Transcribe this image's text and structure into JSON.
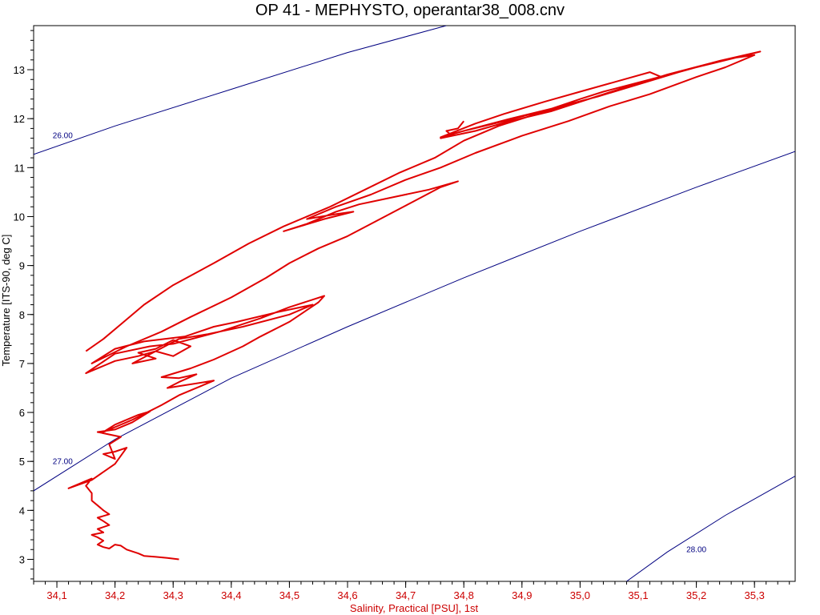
{
  "chart_data": {
    "type": "line",
    "title": "OP 41 - MEPHYSTO, operantar38_008.cnv",
    "xlabel": "Salinity, Practical [PSU], 1st",
    "ylabel": "Temperature [ITS-90, deg C]",
    "xlim": [
      34.06,
      35.37
    ],
    "ylim": [
      2.55,
      13.9
    ],
    "x_ticks": [
      "34,1",
      "34,2",
      "34,3",
      "34,4",
      "34,5",
      "34,6",
      "34,7",
      "34,8",
      "34,9",
      "35,0",
      "35,1",
      "35,2",
      "35,3"
    ],
    "y_ticks": [
      "3",
      "4",
      "5",
      "6",
      "7",
      "8",
      "9",
      "10",
      "11",
      "12",
      "13"
    ],
    "grid": false,
    "colors": {
      "profile": "#e00000",
      "isopycnal": "#000080",
      "x_axis_text": "#cc0000",
      "y_axis_text": "#000000"
    },
    "isopycnals": [
      {
        "label": "26.00",
        "points": [
          [
            34.06,
            11.27
          ],
          [
            34.2,
            11.85
          ],
          [
            34.4,
            12.6
          ],
          [
            34.6,
            13.35
          ],
          [
            34.77,
            13.9
          ]
        ]
      },
      {
        "label": "27.00",
        "points": [
          [
            34.06,
            4.4
          ],
          [
            34.2,
            5.45
          ],
          [
            34.4,
            6.7
          ],
          [
            34.6,
            7.75
          ],
          [
            34.8,
            8.75
          ],
          [
            35.0,
            9.7
          ],
          [
            35.2,
            10.6
          ],
          [
            35.37,
            11.33
          ]
        ]
      },
      {
        "label": "28.00",
        "points": [
          [
            35.08,
            2.55
          ],
          [
            35.15,
            3.15
          ],
          [
            35.25,
            3.9
          ],
          [
            35.37,
            4.7
          ]
        ]
      }
    ],
    "series": [
      {
        "points": [
          [
            34.31,
            3.0
          ],
          [
            34.29,
            3.03
          ],
          [
            34.27,
            3.05
          ],
          [
            34.25,
            3.07
          ],
          [
            34.24,
            3.12
          ],
          [
            34.22,
            3.2
          ],
          [
            34.21,
            3.28
          ],
          [
            34.2,
            3.3
          ],
          [
            34.19,
            3.22
          ],
          [
            34.18,
            3.25
          ],
          [
            34.17,
            3.3
          ],
          [
            34.18,
            3.38
          ],
          [
            34.17,
            3.45
          ],
          [
            34.16,
            3.5
          ],
          [
            34.18,
            3.55
          ],
          [
            34.17,
            3.62
          ],
          [
            34.19,
            3.7
          ],
          [
            34.18,
            3.78
          ],
          [
            34.17,
            3.85
          ],
          [
            34.19,
            3.92
          ],
          [
            34.18,
            4.0
          ],
          [
            34.17,
            4.1
          ],
          [
            34.16,
            4.2
          ],
          [
            34.16,
            4.35
          ],
          [
            34.15,
            4.5
          ],
          [
            34.16,
            4.65
          ],
          [
            34.12,
            4.45
          ],
          [
            34.16,
            4.62
          ],
          [
            34.2,
            4.95
          ],
          [
            34.22,
            5.28
          ],
          [
            34.2,
            5.2
          ],
          [
            34.18,
            5.15
          ],
          [
            34.2,
            5.05
          ],
          [
            34.19,
            5.35
          ],
          [
            34.21,
            5.5
          ],
          [
            34.17,
            5.6
          ],
          [
            34.2,
            5.65
          ],
          [
            34.23,
            5.8
          ],
          [
            34.26,
            6.02
          ],
          [
            34.24,
            5.95
          ],
          [
            34.2,
            5.75
          ],
          [
            34.18,
            5.6
          ],
          [
            34.23,
            5.85
          ],
          [
            34.28,
            6.15
          ],
          [
            34.31,
            6.35
          ],
          [
            34.35,
            6.55
          ],
          [
            34.37,
            6.65
          ],
          [
            34.29,
            6.5
          ],
          [
            34.31,
            6.62
          ],
          [
            34.34,
            6.78
          ],
          [
            34.31,
            6.7
          ],
          [
            34.28,
            6.72
          ],
          [
            34.33,
            6.9
          ],
          [
            34.37,
            7.08
          ],
          [
            34.42,
            7.35
          ],
          [
            34.45,
            7.55
          ],
          [
            34.5,
            7.85
          ],
          [
            34.55,
            8.25
          ],
          [
            34.56,
            8.38
          ],
          [
            34.5,
            8.15
          ],
          [
            34.45,
            7.92
          ],
          [
            34.38,
            7.65
          ],
          [
            34.3,
            7.4
          ],
          [
            34.26,
            7.35
          ],
          [
            34.2,
            7.2
          ],
          [
            34.15,
            6.8
          ],
          [
            34.2,
            7.05
          ],
          [
            34.24,
            7.15
          ],
          [
            34.27,
            7.25
          ],
          [
            34.3,
            7.15
          ],
          [
            34.33,
            7.35
          ],
          [
            34.3,
            7.48
          ],
          [
            34.27,
            7.3
          ],
          [
            34.24,
            7.22
          ],
          [
            34.27,
            7.1
          ],
          [
            34.23,
            7.0
          ],
          [
            34.31,
            7.5
          ],
          [
            34.36,
            7.6
          ],
          [
            34.42,
            7.75
          ],
          [
            34.5,
            8.0
          ],
          [
            34.54,
            8.2
          ],
          [
            34.48,
            8.05
          ],
          [
            34.41,
            7.85
          ],
          [
            34.37,
            7.75
          ],
          [
            34.32,
            7.55
          ],
          [
            34.25,
            7.45
          ],
          [
            34.2,
            7.3
          ],
          [
            34.16,
            7.0
          ],
          [
            34.22,
            7.35
          ],
          [
            34.28,
            7.65
          ],
          [
            34.33,
            7.95
          ],
          [
            34.4,
            8.35
          ],
          [
            34.46,
            8.75
          ],
          [
            34.5,
            9.05
          ],
          [
            34.55,
            9.35
          ],
          [
            34.6,
            9.6
          ],
          [
            34.64,
            9.85
          ],
          [
            34.68,
            10.1
          ],
          [
            34.72,
            10.35
          ],
          [
            34.76,
            10.6
          ],
          [
            34.79,
            10.72
          ],
          [
            34.74,
            10.55
          ],
          [
            34.68,
            10.4
          ],
          [
            34.62,
            10.25
          ],
          [
            34.58,
            10.1
          ],
          [
            34.53,
            9.85
          ],
          [
            34.49,
            9.7
          ],
          [
            34.56,
            9.95
          ],
          [
            34.61,
            10.1
          ],
          [
            34.58,
            10.05
          ],
          [
            34.53,
            9.95
          ],
          [
            34.58,
            10.2
          ],
          [
            34.64,
            10.45
          ],
          [
            34.7,
            10.75
          ],
          [
            34.76,
            11.0
          ],
          [
            34.82,
            11.3
          ],
          [
            34.9,
            11.65
          ],
          [
            34.98,
            11.95
          ],
          [
            35.05,
            12.25
          ],
          [
            35.12,
            12.5
          ],
          [
            35.2,
            12.85
          ],
          [
            35.25,
            13.05
          ],
          [
            35.3,
            13.3
          ],
          [
            35.27,
            13.25
          ],
          [
            35.2,
            13.05
          ],
          [
            35.12,
            12.8
          ],
          [
            35.04,
            12.55
          ],
          [
            35.0,
            12.4
          ],
          [
            34.95,
            12.2
          ],
          [
            34.87,
            11.95
          ],
          [
            34.79,
            11.72
          ],
          [
            34.76,
            11.6
          ],
          [
            34.82,
            11.75
          ],
          [
            34.88,
            11.95
          ],
          [
            34.95,
            12.15
          ],
          [
            35.02,
            12.42
          ],
          [
            35.08,
            12.65
          ],
          [
            35.14,
            12.85
          ],
          [
            35.12,
            12.95
          ],
          [
            35.06,
            12.75
          ],
          [
            35.0,
            12.55
          ],
          [
            34.94,
            12.35
          ],
          [
            34.87,
            12.1
          ],
          [
            34.82,
            11.9
          ],
          [
            34.76,
            11.62
          ],
          [
            34.8,
            11.75
          ],
          [
            34.88,
            12.0
          ],
          [
            34.95,
            12.2
          ],
          [
            35.03,
            12.45
          ],
          [
            35.1,
            12.7
          ],
          [
            35.17,
            12.95
          ],
          [
            35.23,
            13.15
          ],
          [
            35.28,
            13.28
          ],
          [
            35.31,
            13.37
          ],
          [
            35.24,
            13.18
          ],
          [
            35.15,
            12.9
          ],
          [
            35.07,
            12.6
          ],
          [
            35.0,
            12.35
          ],
          [
            34.94,
            12.15
          ],
          [
            34.86,
            11.85
          ],
          [
            34.8,
            11.55
          ],
          [
            34.75,
            11.2
          ],
          [
            34.69,
            10.9
          ],
          [
            34.63,
            10.55
          ],
          [
            34.57,
            10.2
          ],
          [
            34.49,
            9.8
          ],
          [
            34.43,
            9.45
          ],
          [
            34.37,
            9.05
          ],
          [
            34.3,
            8.6
          ],
          [
            34.25,
            8.2
          ],
          [
            34.21,
            7.8
          ],
          [
            34.18,
            7.5
          ],
          [
            34.15,
            7.25
          ]
        ]
      },
      {
        "points": [
          [
            34.78,
            11.65
          ],
          [
            34.77,
            11.75
          ],
          [
            34.79,
            11.8
          ],
          [
            34.8,
            11.95
          ]
        ]
      }
    ]
  }
}
